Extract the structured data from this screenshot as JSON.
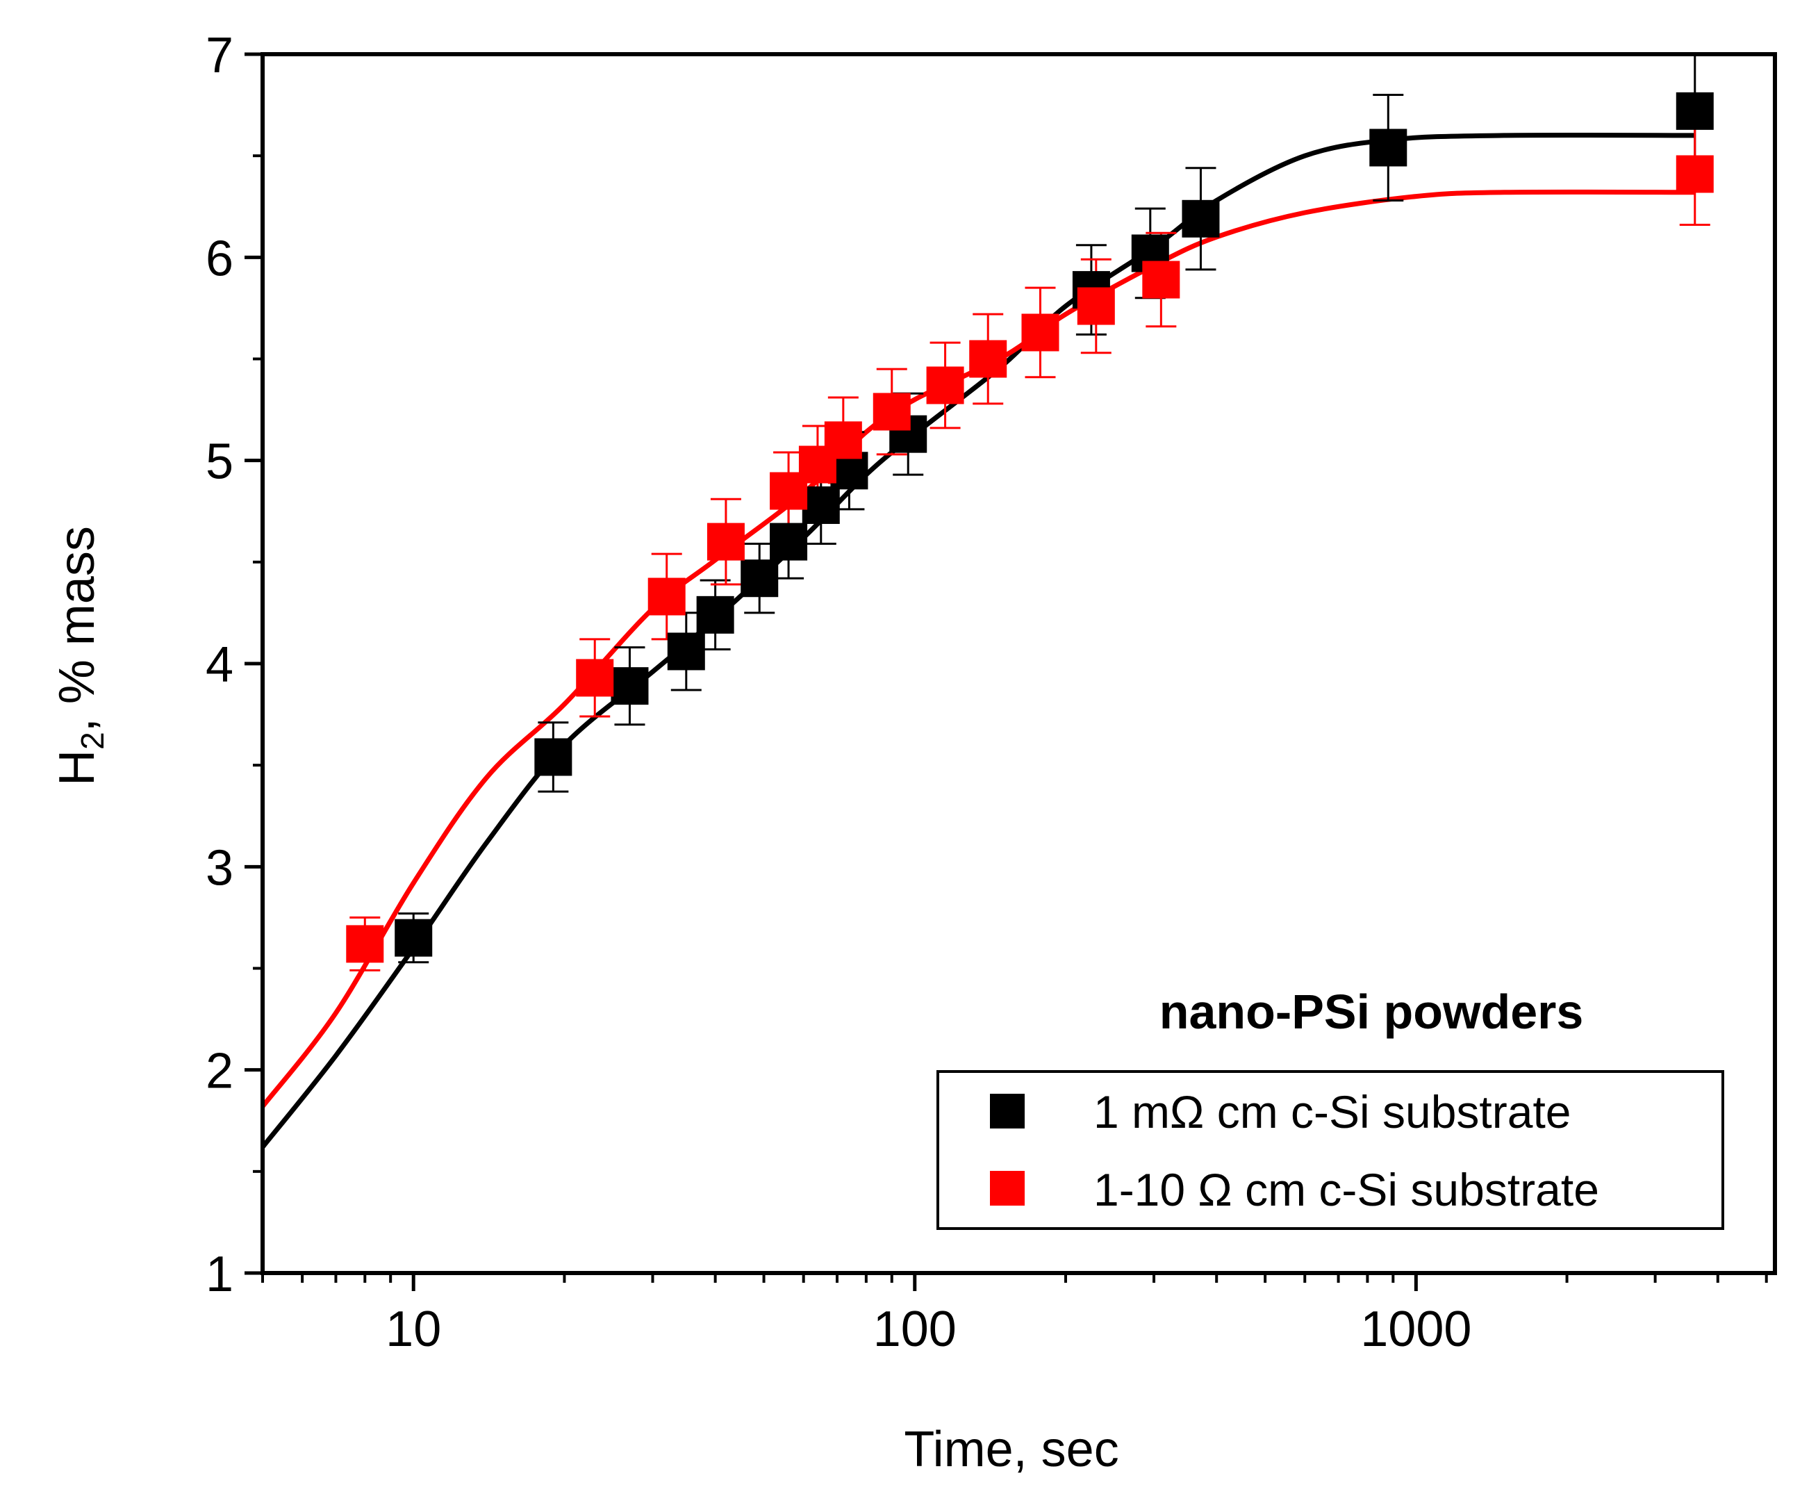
{
  "chart_data": {
    "type": "scatter",
    "title": "",
    "xlabel": "Time, sec",
    "ylabel": {
      "main": "H",
      "subscript": "2",
      "rest": ", % mass"
    },
    "xscale": "log",
    "xlim": [
      5,
      5200
    ],
    "ylim": [
      1,
      7
    ],
    "xticks": [
      10,
      100,
      1000
    ],
    "xtick_labels": [
      "10",
      "100",
      "1000"
    ],
    "yticks": [
      1,
      2,
      3,
      4,
      5,
      6,
      7
    ],
    "ytick_labels": [
      "1",
      "2",
      "3",
      "4",
      "5",
      "6",
      "7"
    ],
    "grid": false,
    "legend": {
      "title": "nano-PSi powders",
      "position": "bottom-right",
      "entries": [
        "1 mΩ cm c-Si substrate",
        "1-10 Ω cm c-Si substrate"
      ]
    },
    "series": [
      {
        "name": "1 mΩ cm c-Si substrate",
        "color": "#000000",
        "points": [
          {
            "x": 10,
            "y": 2.65,
            "err": 0.12
          },
          {
            "x": 19,
            "y": 3.54,
            "err": 0.17
          },
          {
            "x": 27,
            "y": 3.89,
            "err": 0.19
          },
          {
            "x": 35,
            "y": 4.06,
            "err": 0.19
          },
          {
            "x": 40,
            "y": 4.24,
            "err": 0.17
          },
          {
            "x": 49,
            "y": 4.42,
            "err": 0.17
          },
          {
            "x": 56,
            "y": 4.6,
            "err": 0.18
          },
          {
            "x": 65,
            "y": 4.78,
            "err": 0.19
          },
          {
            "x": 74,
            "y": 4.95,
            "err": 0.19
          },
          {
            "x": 97,
            "y": 5.13,
            "err": 0.2
          },
          {
            "x": 225,
            "y": 5.84,
            "err": 0.22
          },
          {
            "x": 295,
            "y": 6.02,
            "err": 0.22
          },
          {
            "x": 372,
            "y": 6.19,
            "err": 0.25
          },
          {
            "x": 880,
            "y": 6.54,
            "err": 0.26
          },
          {
            "x": 3600,
            "y": 6.72,
            "err": 0.28
          }
        ],
        "fit": [
          {
            "x": 5,
            "y": 1.62
          },
          {
            "x": 7,
            "y": 2.07
          },
          {
            "x": 10,
            "y": 2.6
          },
          {
            "x": 14,
            "y": 3.12
          },
          {
            "x": 20,
            "y": 3.6
          },
          {
            "x": 30,
            "y": 3.96
          },
          {
            "x": 40,
            "y": 4.22
          },
          {
            "x": 60,
            "y": 4.62
          },
          {
            "x": 80,
            "y": 4.93
          },
          {
            "x": 100,
            "y": 5.13
          },
          {
            "x": 150,
            "y": 5.47
          },
          {
            "x": 200,
            "y": 5.76
          },
          {
            "x": 300,
            "y": 6.05
          },
          {
            "x": 400,
            "y": 6.28
          },
          {
            "x": 600,
            "y": 6.5
          },
          {
            "x": 900,
            "y": 6.58
          },
          {
            "x": 1500,
            "y": 6.6
          },
          {
            "x": 3600,
            "y": 6.6
          }
        ]
      },
      {
        "name": "1-10 Ω cm c-Si substrate",
        "color": "#ff0000",
        "points": [
          {
            "x": 8,
            "y": 2.62,
            "err": 0.13
          },
          {
            "x": 23,
            "y": 3.93,
            "err": 0.19
          },
          {
            "x": 32,
            "y": 4.33,
            "err": 0.21
          },
          {
            "x": 42,
            "y": 4.6,
            "err": 0.21
          },
          {
            "x": 56,
            "y": 4.85,
            "err": 0.19
          },
          {
            "x": 64,
            "y": 4.98,
            "err": 0.19
          },
          {
            "x": 72,
            "y": 5.1,
            "err": 0.21
          },
          {
            "x": 90,
            "y": 5.24,
            "err": 0.21
          },
          {
            "x": 115,
            "y": 5.37,
            "err": 0.21
          },
          {
            "x": 140,
            "y": 5.5,
            "err": 0.22
          },
          {
            "x": 178,
            "y": 5.63,
            "err": 0.22
          },
          {
            "x": 230,
            "y": 5.76,
            "err": 0.23
          },
          {
            "x": 310,
            "y": 5.89,
            "err": 0.23
          },
          {
            "x": 3600,
            "y": 6.41,
            "err": 0.25
          }
        ],
        "fit": [
          {
            "x": 5,
            "y": 1.82
          },
          {
            "x": 7,
            "y": 2.28
          },
          {
            "x": 10,
            "y": 2.92
          },
          {
            "x": 14,
            "y": 3.44
          },
          {
            "x": 20,
            "y": 3.8
          },
          {
            "x": 30,
            "y": 4.27
          },
          {
            "x": 40,
            "y": 4.51
          },
          {
            "x": 60,
            "y": 4.84
          },
          {
            "x": 80,
            "y": 5.14
          },
          {
            "x": 100,
            "y": 5.3
          },
          {
            "x": 150,
            "y": 5.51
          },
          {
            "x": 200,
            "y": 5.72
          },
          {
            "x": 300,
            "y": 5.96
          },
          {
            "x": 400,
            "y": 6.1
          },
          {
            "x": 600,
            "y": 6.22
          },
          {
            "x": 1000,
            "y": 6.3
          },
          {
            "x": 1500,
            "y": 6.32
          },
          {
            "x": 3600,
            "y": 6.32
          }
        ]
      }
    ]
  }
}
